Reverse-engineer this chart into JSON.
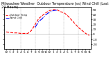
{
  "title": "Milwaukee Weather  Outdoor Temperature (vs) Wind Chill (Last 24 Hours)",
  "bg_color": "#ffffff",
  "plot_bg_color": "#ffffff",
  "grid_color": "#aaaaaa",
  "ylim": [
    -30,
    55
  ],
  "yticks": [
    -20,
    -10,
    0,
    10,
    20,
    30,
    40,
    50
  ],
  "hours": [
    0,
    1,
    2,
    3,
    4,
    5,
    6,
    7,
    8,
    9,
    10,
    11,
    12,
    13,
    14,
    15,
    16,
    17,
    18,
    19,
    20,
    21,
    22,
    23
  ],
  "x_labels": [
    "12",
    "1",
    "2",
    "3",
    "4",
    "5",
    "6",
    "7",
    "8",
    "9",
    "10",
    "11",
    "12",
    "1",
    "2",
    "3",
    "4",
    "5",
    "6",
    "7",
    "8",
    "9",
    "10",
    "11"
  ],
  "outdoor_temp": [
    5,
    4,
    3,
    3,
    2,
    2,
    2,
    8,
    20,
    32,
    38,
    44,
    48,
    50,
    50,
    46,
    44,
    38,
    30,
    22,
    14,
    8,
    2,
    -2
  ],
  "wind_chill": [
    null,
    null,
    null,
    null,
    null,
    null,
    null,
    null,
    14,
    26,
    32,
    40,
    45,
    48,
    49,
    null,
    null,
    null,
    null,
    null,
    null,
    null,
    null,
    null
  ],
  "temp_color": "#ff0000",
  "chill_color": "#0000ff",
  "linewidth": 0.8,
  "title_fontsize": 3.5,
  "tick_fontsize": 3.0,
  "grid_vlines": [
    4,
    8,
    12,
    16,
    20
  ]
}
